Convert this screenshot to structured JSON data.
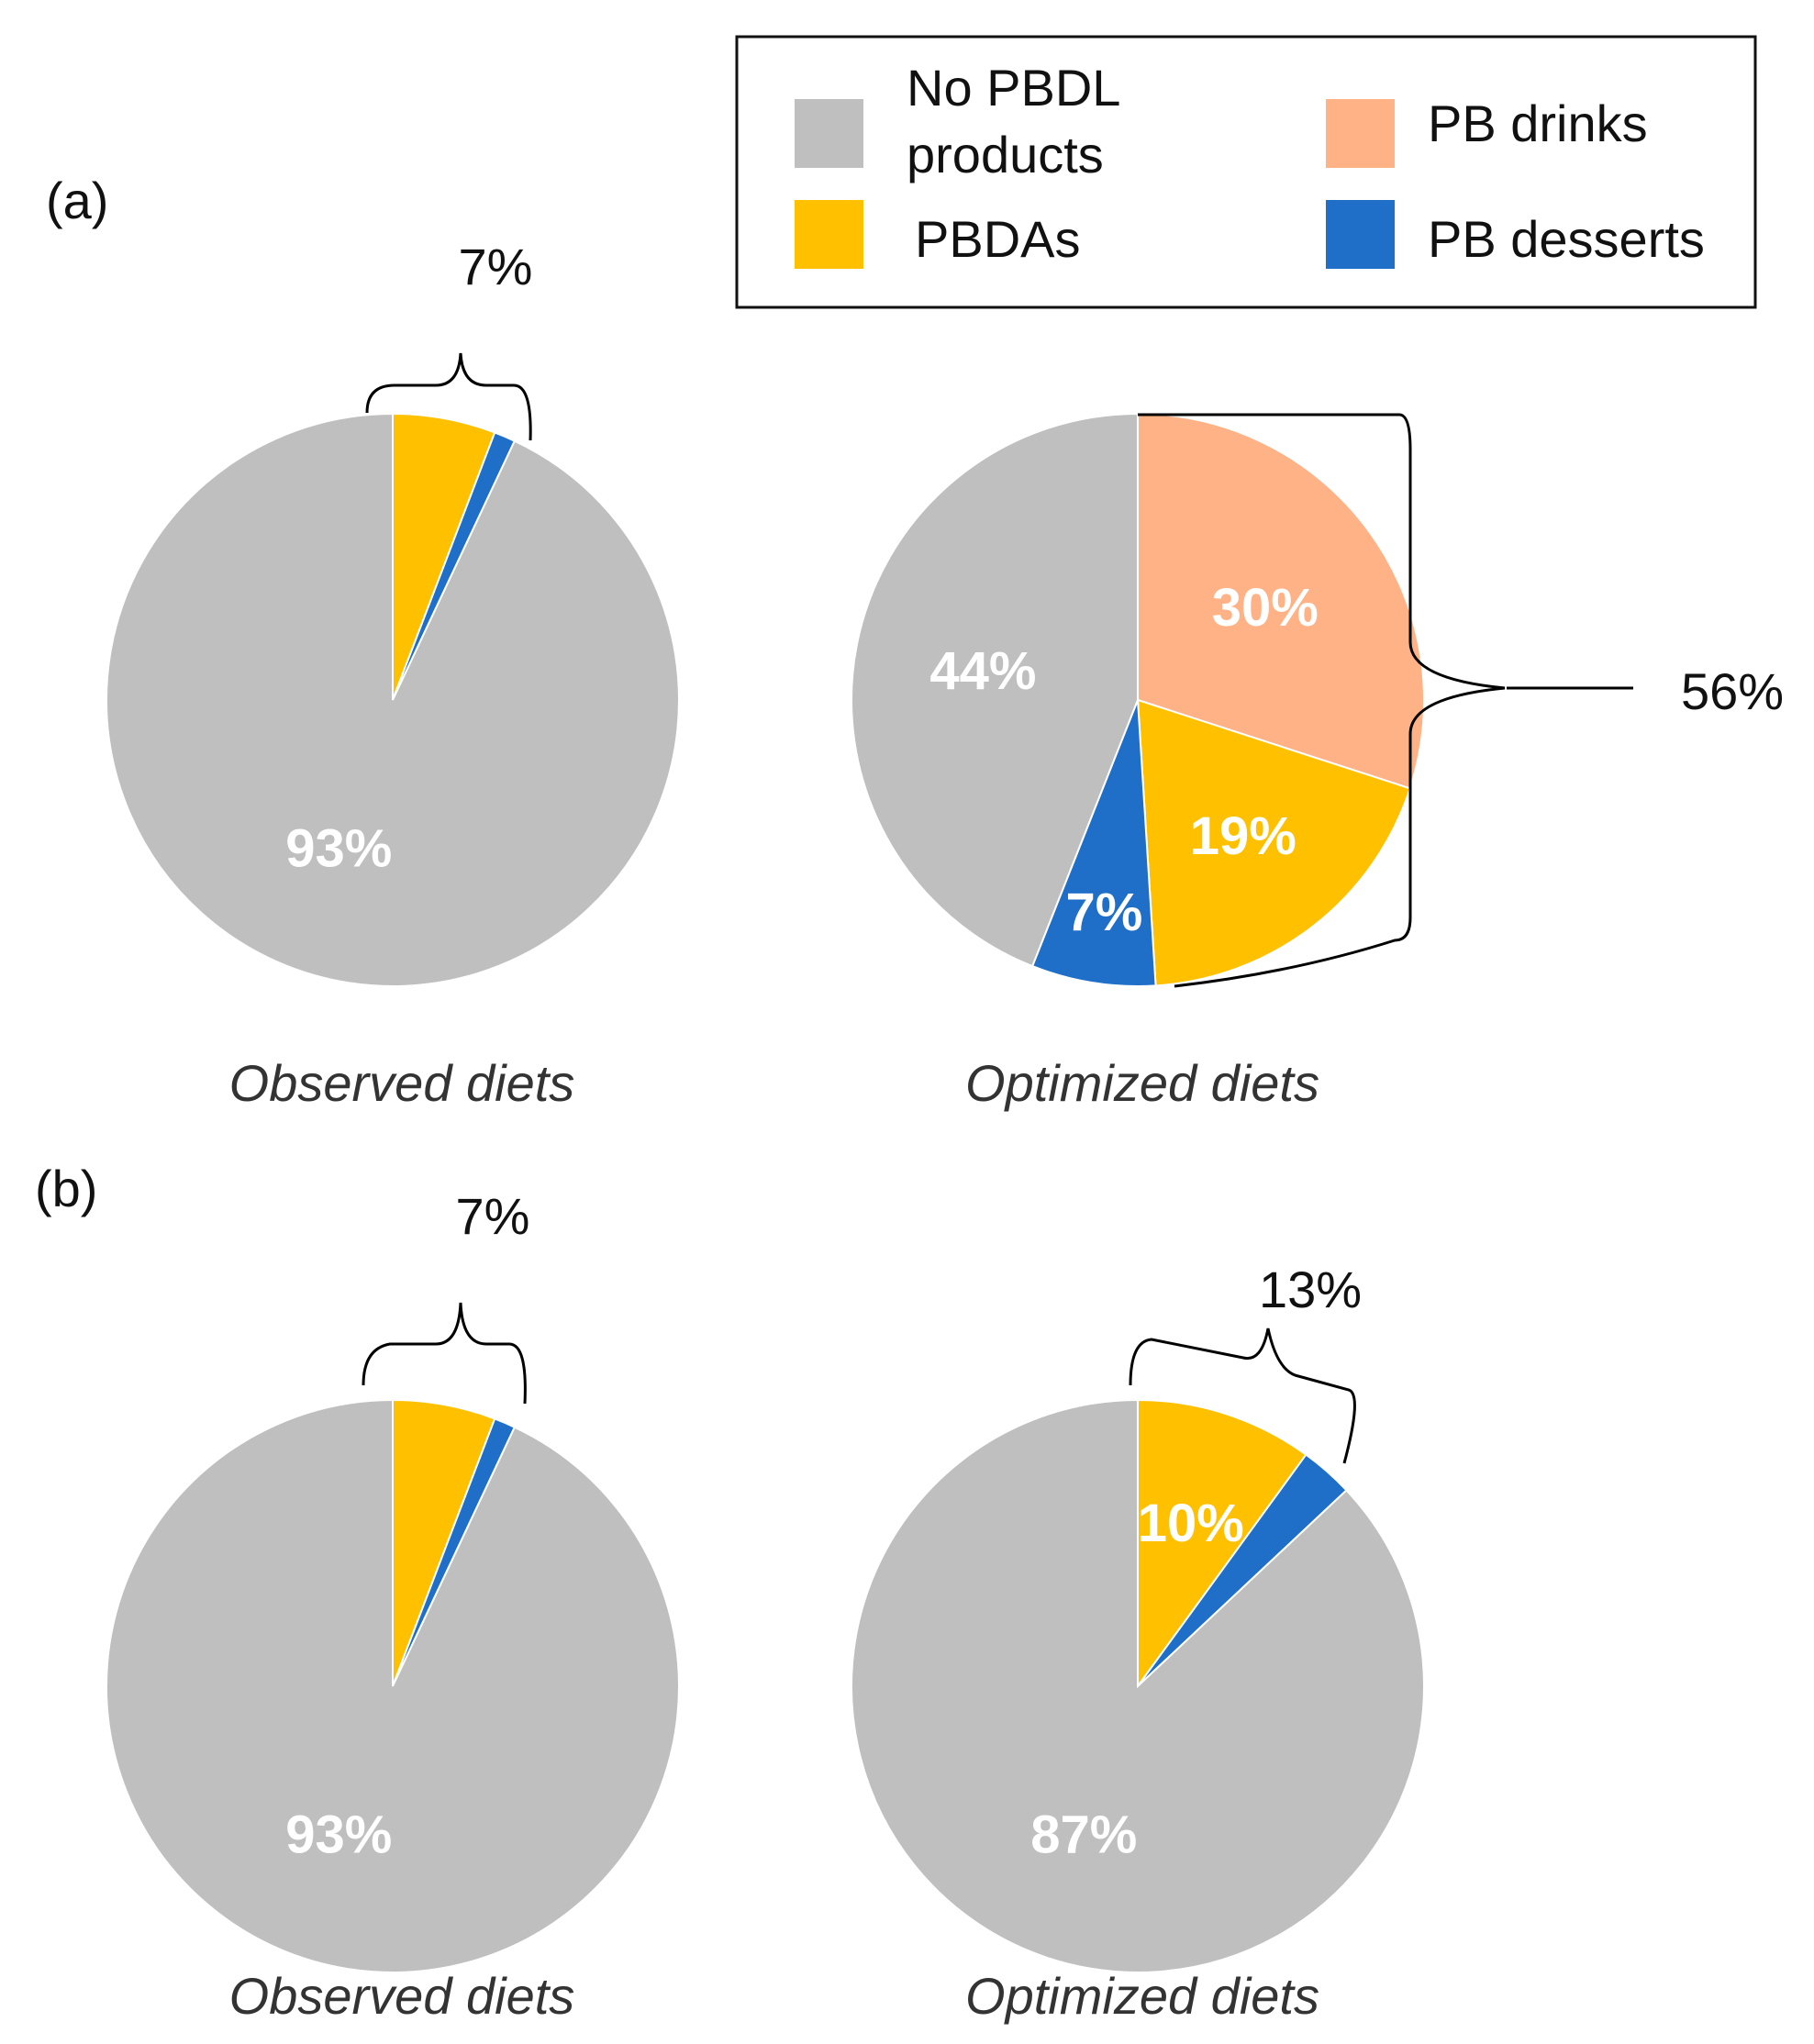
{
  "chart_data": [
    {
      "type": "pie",
      "panel": "(a)",
      "caption": "Observed diets",
      "slices": [
        {
          "name": "PBDAs",
          "value": 5.8,
          "color": "#FFC000",
          "label": ""
        },
        {
          "name": "PB desserts",
          "value": 1.2,
          "color": "#1F6FC9",
          "label": ""
        },
        {
          "name": "No PBDL products",
          "value": 93,
          "color": "#BFBFBF",
          "label": "93%"
        }
      ],
      "bracket_label": "7%"
    },
    {
      "type": "pie",
      "panel": "(a)",
      "caption": "Optimized diets",
      "slices": [
        {
          "name": "PB drinks",
          "value": 30,
          "color": "#FFB286",
          "label": "30%"
        },
        {
          "name": "PBDAs",
          "value": 19,
          "color": "#FFC000",
          "label": "19%"
        },
        {
          "name": "PB desserts",
          "value": 7,
          "color": "#1F6FC9",
          "label": "7%"
        },
        {
          "name": "No PBDL products",
          "value": 44,
          "color": "#BFBFBF",
          "label": "44%"
        }
      ],
      "bracket_label": "56%"
    },
    {
      "type": "pie",
      "panel": "(b)",
      "caption": "Observed diets",
      "slices": [
        {
          "name": "PBDAs",
          "value": 5.8,
          "color": "#FFC000",
          "label": ""
        },
        {
          "name": "PB desserts",
          "value": 1.2,
          "color": "#1F6FC9",
          "label": ""
        },
        {
          "name": "No PBDL products",
          "value": 93,
          "color": "#BFBFBF",
          "label": "93%"
        }
      ],
      "bracket_label": "7%"
    },
    {
      "type": "pie",
      "panel": "(b)",
      "caption": "Optimized diets",
      "slices": [
        {
          "name": "PBDAs",
          "value": 10,
          "color": "#FFC000",
          "label": "10%"
        },
        {
          "name": "PB desserts",
          "value": 3,
          "color": "#1F6FC9",
          "label": ""
        },
        {
          "name": "No PBDL products",
          "value": 87,
          "color": "#BFBFBF",
          "label": "87%"
        }
      ],
      "bracket_label": "13%"
    }
  ],
  "panels": {
    "a": "(a)",
    "b": "(b)"
  },
  "legend": {
    "items": [
      {
        "line1": "No PBDL",
        "line2": "products",
        "color": "#BFBFBF"
      },
      {
        "line1": "PB drinks",
        "color": "#FFB286"
      },
      {
        "line1": "PBDAs",
        "color": "#FFC000"
      },
      {
        "line1": "PB desserts",
        "color": "#1F6FC9"
      }
    ]
  }
}
